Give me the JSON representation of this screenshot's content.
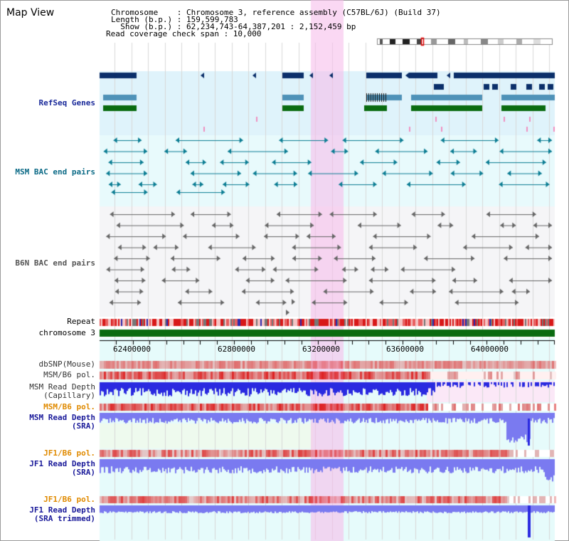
{
  "title": "Map View",
  "info": {
    "chromosome": "Chromosome    : Chromosome 3, reference assembly (C57BL/6J) (Build 37)",
    "length": "Length (b.p.) : 159,599,783",
    "show": "  Show (b.p.) : 62,234,743-64,387,201 : 2,152,459 bp",
    "coverage": "Read coverage check span : 10,000"
  },
  "tracks": {
    "refseq": "RefSeq Genes",
    "msm_bac": "MSM BAC end pairs",
    "b6n_bac": "B6N BAC end pairs",
    "repeat": "Repeat",
    "chrom": "chromosome 3",
    "dbsnp": "dbSNP(Mouse)",
    "msm_pol": "MSM/B6 pol.",
    "msm_depth_cap_1": "MSM Read Depth",
    "msm_depth_cap_2": "(Capillary)",
    "msm_pol_2": "MSM/B6 pol.",
    "msm_depth_sra_1": "MSM Read Depth",
    "msm_depth_sra_2": "(SRA)",
    "jf1_pol": "JF1/B6 pol.",
    "jf1_depth_sra_1": "JF1 Read Depth",
    "jf1_depth_sra_2": "(SRA)",
    "jf1_pol_2": "JF1/B6 pol.",
    "jf1_depth_trim_1": "JF1 Read Depth",
    "jf1_depth_trim_2": "(SRA trimmed)"
  },
  "ticks": [
    "62400000",
    "62800000",
    "63200000",
    "63600000",
    "64000000"
  ],
  "colors": {
    "refseq_label": "#1a2a9a",
    "msm_label": "#0b6a86",
    "b6n_label": "#555555",
    "orange_label": "#e08a00",
    "blue_label": "#1a1a9a",
    "highlight": "#f7d6ef",
    "gene_dark": "#0b2f6a",
    "gene_mid": "#4f92b8",
    "gene_green": "#0a6b10",
    "chrom_green": "#0a6b10",
    "depth_blue": "#2a2ae0",
    "depth_light": "#7a7af0"
  }
}
